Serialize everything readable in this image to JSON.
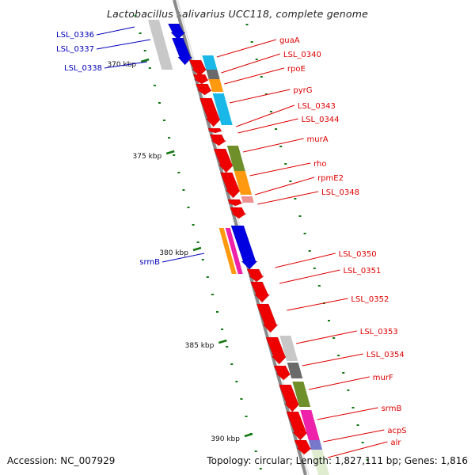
{
  "title": "Lactobacillus salivarius UCC118, complete genome",
  "footer": {
    "accession": "Accession: NC_007929",
    "stats": "Topology: circular; Length: 1,827,111 bp; Genes: 1,816"
  },
  "colors": {
    "gene_red": "#ee0000",
    "gene_blue": "#0000e0",
    "gene_gray": "#c8c8c8",
    "label_red": "#dd0000",
    "label_blue": "#0000bb",
    "tick_green": "#117711",
    "backbone": "#8a8a8a",
    "cog_cyan": "#19b8e8",
    "cog_darkgray": "#6a6a6a",
    "cog_orange": "#ff9a10",
    "cog_olive": "#6f8f2a",
    "cog_pink": "#ee9090",
    "cog_magenta": "#ee22aa",
    "cog_purple": "#7777cc",
    "cog_lightblue": "#aaaaff",
    "cog_palegreen": "#e0ecd0"
  },
  "ruler": [
    "370 kbp",
    "375 kbp",
    "380 kbp",
    "385 kbp",
    "390 kbp"
  ],
  "labels_forward": [
    "guaA",
    "LSL_0340",
    "rpoE",
    "pyrG",
    "LSL_0343",
    "LSL_0344",
    "murA",
    "rho",
    "rpmE2",
    "LSL_0348",
    "LSL_0350",
    "LSL_0351",
    "LSL_0352",
    "LSL_0353",
    "LSL_0354",
    "murF",
    "srmB",
    "acpS",
    "alr"
  ],
  "labels_reverse": [
    "LSL_0336",
    "LSL_0337",
    "LSL_0338",
    "srmB"
  ]
}
